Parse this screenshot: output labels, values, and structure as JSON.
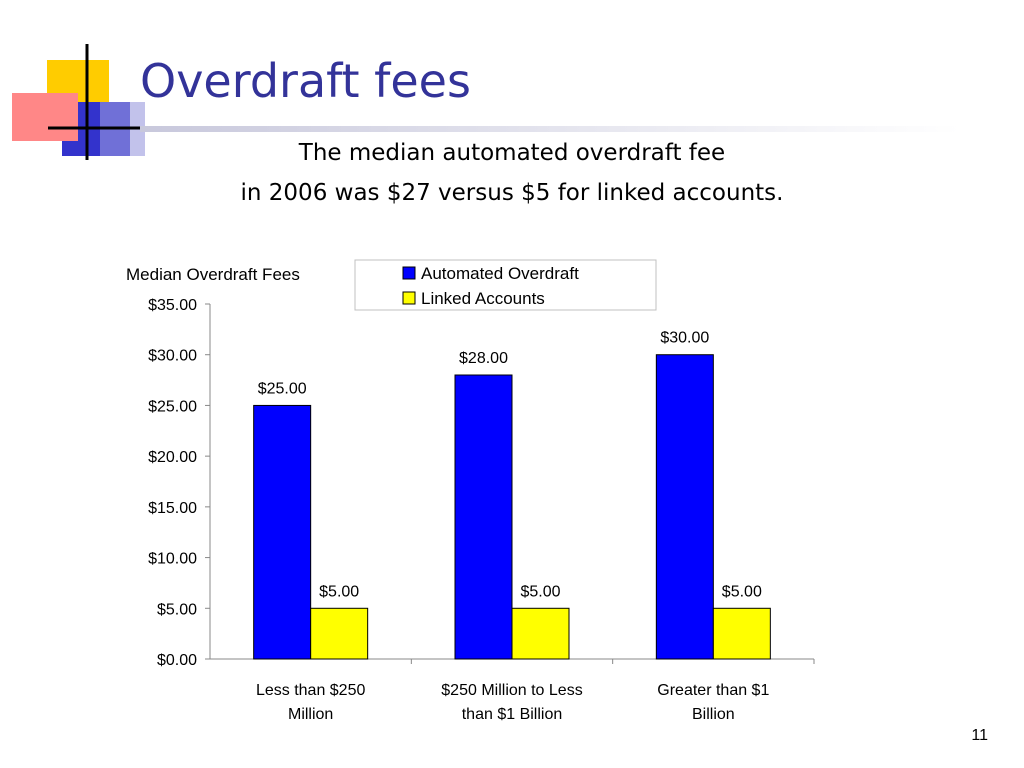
{
  "slide": {
    "title": "Overdraft fees",
    "subtitle_line1": "The median automated overdraft fee",
    "subtitle_line2": "in 2006 was $27 versus $5 for linked accounts.",
    "page_number": "11"
  },
  "colors": {
    "title": "#333399",
    "automated": "#0000ff",
    "linked": "#ffff00",
    "logo_yellow": "#ffcc00",
    "logo_blue": "#3333cc",
    "logo_red": "#ff3333"
  },
  "chart_data": {
    "type": "bar",
    "title": "Median Overdraft Fees",
    "categories": [
      [
        "Less than $250",
        "Million"
      ],
      [
        "$250 Million to Less",
        "than $1 Billion"
      ],
      [
        "Greater than $1",
        "Billion"
      ]
    ],
    "series": [
      {
        "name": "Automated Overdraft",
        "values": [
          25,
          28,
          30
        ],
        "labels": [
          "$25.00",
          "$28.00",
          "$30.00"
        ],
        "color": "#0000ff"
      },
      {
        "name": "Linked Accounts",
        "values": [
          5,
          5,
          5
        ],
        "labels": [
          "$5.00",
          "$5.00",
          "$5.00"
        ],
        "color": "#ffff00"
      }
    ],
    "yticks": [
      "$0.00",
      "$5.00",
      "$10.00",
      "$15.00",
      "$20.00",
      "$25.00",
      "$30.00",
      "$35.00"
    ],
    "ylim": [
      0,
      35
    ],
    "ystep": 5,
    "grid": false,
    "legend_position": "top"
  }
}
